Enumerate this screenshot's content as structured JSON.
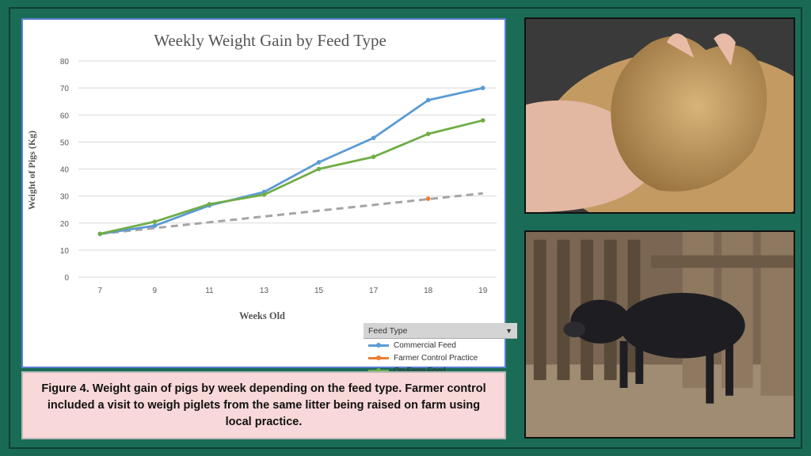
{
  "caption": {
    "label": "Figure 4.",
    "text": " Weight gain of pigs by week depending on the feed type. Farmer control included a visit to weigh piglets from the same litter being raised on farm using local practice."
  },
  "legend": {
    "title": "Feed Type",
    "dropdown_icon": "triangle-down-icon"
  },
  "colors": {
    "commercial": "#5b9bd5",
    "farmer": "#ed7d31",
    "onfarm": "#70ad47",
    "trend": "#a5a5a5"
  },
  "chart_data": {
    "type": "line",
    "title": "Weekly Weight Gain by Feed Type",
    "xlabel": "Weeks Old",
    "ylabel": "Weight of Pigs (Kg)",
    "categories": [
      "7",
      "9",
      "11",
      "13",
      "15",
      "17",
      "18",
      "19"
    ],
    "ylim": [
      0,
      80
    ],
    "yticks": [
      0,
      10,
      20,
      30,
      40,
      50,
      60,
      70,
      80
    ],
    "grid": true,
    "legend_position": "bottom-right",
    "series": [
      {
        "name": "Commercial Feed",
        "color_key": "commercial",
        "values": [
          16,
          19,
          26.5,
          31.5,
          42.5,
          51.5,
          65.5,
          70
        ]
      },
      {
        "name": "Farmer Control Practice",
        "color_key": "farmer",
        "values": [
          null,
          null,
          null,
          null,
          null,
          null,
          29,
          null
        ]
      },
      {
        "name": "On-Farm Feed",
        "color_key": "onfarm",
        "values": [
          16,
          20.5,
          27,
          30.5,
          40,
          44.5,
          53,
          58
        ]
      }
    ],
    "trendline": {
      "series": "Farmer Control Practice",
      "style": "dashed",
      "from": 16,
      "to": 31
    }
  }
}
